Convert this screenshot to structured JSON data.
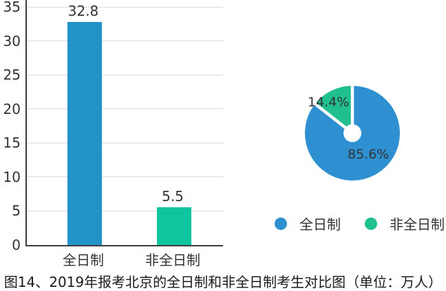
{
  "caption": "图14、2019年报考北京的全日制和非全日制考生对比图（单位：万人）",
  "colors": {
    "bar_blue": "#2392C8",
    "bar_green": "#0FC5A0",
    "pie_blue": "#2E90D1",
    "pie_green": "#1FBF90",
    "grid": "#DCDCDC",
    "axis": "#3C3C3C",
    "text": "#333333"
  },
  "chart_data": [
    {
      "type": "bar",
      "title": "",
      "xlabel": "",
      "ylabel": "",
      "unit": "万人",
      "categories": [
        "全日制",
        "非全日制"
      ],
      "values": [
        32.8,
        5.5
      ],
      "value_labels": [
        "32.8",
        "5.5"
      ],
      "bar_colors": [
        "#2392C8",
        "#0FC5A0"
      ],
      "ylim": [
        0,
        35
      ],
      "yticks": [
        0,
        5,
        10,
        15,
        20,
        25,
        30,
        35
      ],
      "grid": true,
      "legend_position": "none"
    },
    {
      "type": "pie",
      "donut": true,
      "slices": [
        {
          "name": "全日制",
          "value": 85.6,
          "label": "85.6%",
          "color": "#2E90D1"
        },
        {
          "name": "非全日制",
          "value": 14.4,
          "label": "14.4%",
          "color": "#1FBF90"
        }
      ],
      "start_angle_deg": 0,
      "legend_position": "bottom"
    }
  ],
  "legend": {
    "items": [
      {
        "label": "全日制",
        "color": "#2E90D1"
      },
      {
        "label": "非全日制",
        "color": "#1FBF90"
      }
    ]
  }
}
